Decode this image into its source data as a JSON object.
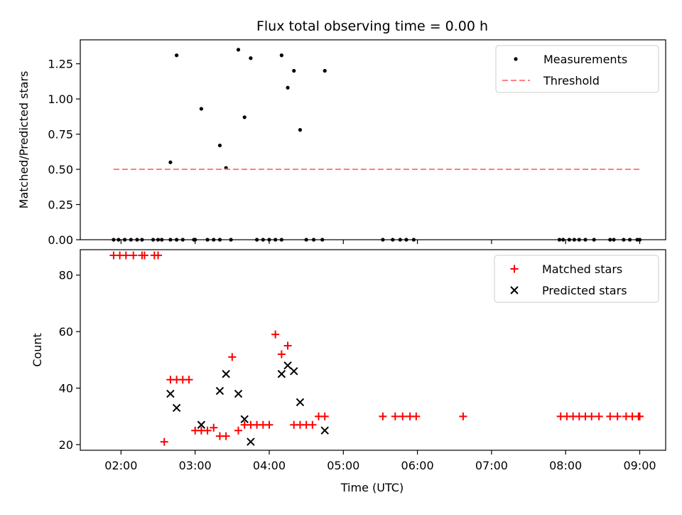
{
  "chart_data": {
    "title": "Flux total observing time = 0.00 h",
    "xlabel": "Time (UTC)",
    "x_ticks": [
      "02:00",
      "03:00",
      "04:00",
      "05:00",
      "06:00",
      "07:00",
      "08:00",
      "09:00"
    ],
    "xlim_hours": [
      1.45,
      9.35
    ],
    "panels": [
      {
        "type": "scatter",
        "ylabel": "Matched/Predicted stars",
        "ylim": [
          0,
          1.42
        ],
        "y_ticks": [
          "0.00",
          "0.25",
          "0.50",
          "0.75",
          "1.00",
          "1.25"
        ],
        "y_tick_values": [
          0,
          0.25,
          0.5,
          0.75,
          1.0,
          1.25
        ],
        "legend_position": "upper-right",
        "series": [
          {
            "name": "Measurements",
            "marker": "dot",
            "color": "#000000",
            "x": [
              "01:54",
              "01:58",
              "02:03",
              "02:08",
              "02:13",
              "02:17",
              "02:26",
              "02:30",
              "02:33",
              "02:40",
              "02:45",
              "02:50",
              "02:59",
              "03:00",
              "03:10",
              "03:15",
              "03:20",
              "03:29",
              "03:50",
              "03:55",
              "04:00",
              "04:05",
              "04:10",
              "04:30",
              "04:36",
              "04:43",
              "05:32",
              "05:40",
              "05:46",
              "05:51",
              "05:57",
              "07:55",
              "07:58",
              "08:03",
              "08:07",
              "08:11",
              "08:16",
              "08:23",
              "08:36",
              "08:39",
              "08:47",
              "08:52",
              "08:58",
              "09:00",
              "02:40",
              "02:45",
              "03:05",
              "03:20",
              "03:25",
              "03:35",
              "03:40",
              "03:45",
              "04:10",
              "04:15",
              "04:20",
              "04:25",
              "04:45"
            ],
            "y": [
              0,
              0,
              0,
              0,
              0,
              0,
              0,
              0,
              0,
              0,
              0,
              0,
              0,
              0,
              0,
              0,
              0,
              0,
              0,
              0,
              0,
              0,
              0,
              0,
              0,
              0,
              0,
              0,
              0,
              0,
              0,
              0,
              0,
              0,
              0,
              0,
              0,
              0,
              0,
              0,
              0,
              0,
              0,
              0,
              0.55,
              1.31,
              0.93,
              0.67,
              0.51,
              1.35,
              0.87,
              1.29,
              1.31,
              1.08,
              1.2,
              0.78,
              1.2
            ]
          },
          {
            "name": "Threshold",
            "marker": "dashed-line",
            "color": "#ff7f7f",
            "x": [
              "01:54",
              "09:00"
            ],
            "y": [
              0.5,
              0.5
            ]
          }
        ]
      },
      {
        "type": "scatter",
        "ylabel": "Count",
        "ylim": [
          18,
          89
        ],
        "y_ticks": [
          "20",
          "40",
          "60",
          "80"
        ],
        "y_tick_values": [
          20,
          40,
          60,
          80
        ],
        "legend_position": "upper-right",
        "series": [
          {
            "name": "Matched stars",
            "marker": "plus",
            "color": "#ff0000",
            "x": [
              "01:54",
              "01:59",
              "02:04",
              "02:10",
              "02:17",
              "02:19",
              "02:27",
              "02:30",
              "02:35",
              "02:40",
              "02:45",
              "02:50",
              "02:55",
              "03:00",
              "03:05",
              "03:10",
              "03:15",
              "03:20",
              "03:25",
              "03:30",
              "03:35",
              "03:40",
              "03:45",
              "03:50",
              "03:55",
              "04:00",
              "04:05",
              "04:10",
              "04:15",
              "04:20",
              "04:25",
              "04:30",
              "04:35",
              "04:40",
              "04:45",
              "05:32",
              "05:42",
              "05:48",
              "05:54",
              "05:59",
              "06:37",
              "07:56",
              "08:01",
              "08:06",
              "08:11",
              "08:16",
              "08:21",
              "08:27",
              "08:36",
              "08:42",
              "08:49",
              "08:54",
              "08:59",
              "09:00"
            ],
            "y": [
              87,
              87,
              87,
              87,
              87,
              87,
              87,
              87,
              21,
              43,
              43,
              43,
              43,
              25,
              25,
              25,
              26,
              23,
              23,
              51,
              25,
              27,
              27,
              27,
              27,
              27,
              59,
              52,
              55,
              27,
              27,
              27,
              27,
              30,
              30,
              30,
              30,
              30,
              30,
              30,
              30,
              30,
              30,
              30,
              30,
              30,
              30,
              30,
              30,
              30,
              30,
              30,
              30,
              30
            ]
          },
          {
            "name": "Predicted stars",
            "marker": "x",
            "color": "#000000",
            "x": [
              "02:40",
              "02:45",
              "03:05",
              "03:20",
              "03:25",
              "03:35",
              "03:40",
              "03:45",
              "04:10",
              "04:15",
              "04:20",
              "04:25",
              "04:45"
            ],
            "y": [
              38,
              33,
              27,
              39,
              45,
              38,
              29,
              21,
              45,
              48,
              46,
              35,
              25
            ]
          }
        ]
      }
    ]
  }
}
